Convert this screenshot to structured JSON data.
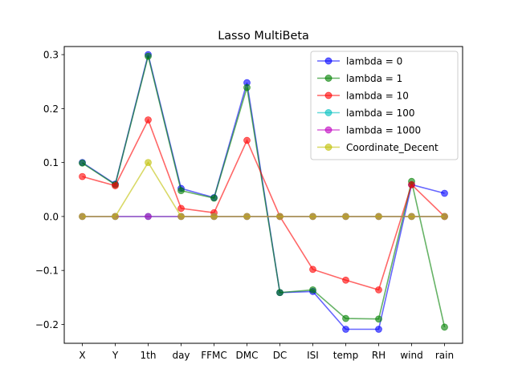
{
  "chart_data": {
    "type": "line",
    "title": "Lasso MultiBeta",
    "xlabel": "",
    "ylabel": "",
    "categories": [
      "X",
      "Y",
      "1th",
      "day",
      "FFMC",
      "DMC",
      "DC",
      "ISI",
      "temp",
      "RH",
      "wind",
      "rain"
    ],
    "ylim": [
      -0.235,
      0.315
    ],
    "yticks": [
      -0.2,
      -0.1,
      0.0,
      0.1,
      0.2,
      0.3
    ],
    "ytick_labels": [
      "−0.2",
      "−0.1",
      "0.0",
      "0.1",
      "0.2",
      "0.3"
    ],
    "grid": false,
    "legend_position": "top-right",
    "series": [
      {
        "name": "lambda = 0",
        "color": "#0000ff",
        "values": [
          0.1,
          0.06,
          0.3,
          0.052,
          0.035,
          0.248,
          -0.141,
          -0.139,
          -0.209,
          -0.209,
          0.059,
          0.043
        ]
      },
      {
        "name": "lambda = 1",
        "color": "#008000",
        "values": [
          0.099,
          0.059,
          0.297,
          0.048,
          0.034,
          0.239,
          -0.141,
          -0.136,
          -0.189,
          -0.19,
          0.065,
          -0.205
        ]
      },
      {
        "name": "lambda = 10",
        "color": "#ff0000",
        "values": [
          0.074,
          0.057,
          0.179,
          0.015,
          0.007,
          0.141,
          0.0,
          -0.098,
          -0.118,
          -0.136,
          0.059,
          0.0
        ]
      },
      {
        "name": "lambda = 100",
        "color": "#00bfbf",
        "values": [
          0.0,
          0.0,
          0.0,
          0.0,
          0.0,
          0.0,
          0.0,
          0.0,
          0.0,
          0.0,
          0.0,
          0.0
        ]
      },
      {
        "name": "lambda = 1000",
        "color": "#bf00bf",
        "values": [
          0.0,
          0.0,
          0.0,
          0.0,
          0.0,
          0.0,
          0.0,
          0.0,
          0.0,
          0.0,
          0.0,
          0.0
        ]
      },
      {
        "name": "Coordinate_Decent",
        "color": "#bfbf00",
        "values": [
          0.0,
          0.0,
          0.1,
          0.0,
          0.0,
          0.0,
          0.0,
          0.0,
          0.0,
          0.0,
          0.0,
          0.0
        ]
      }
    ]
  }
}
